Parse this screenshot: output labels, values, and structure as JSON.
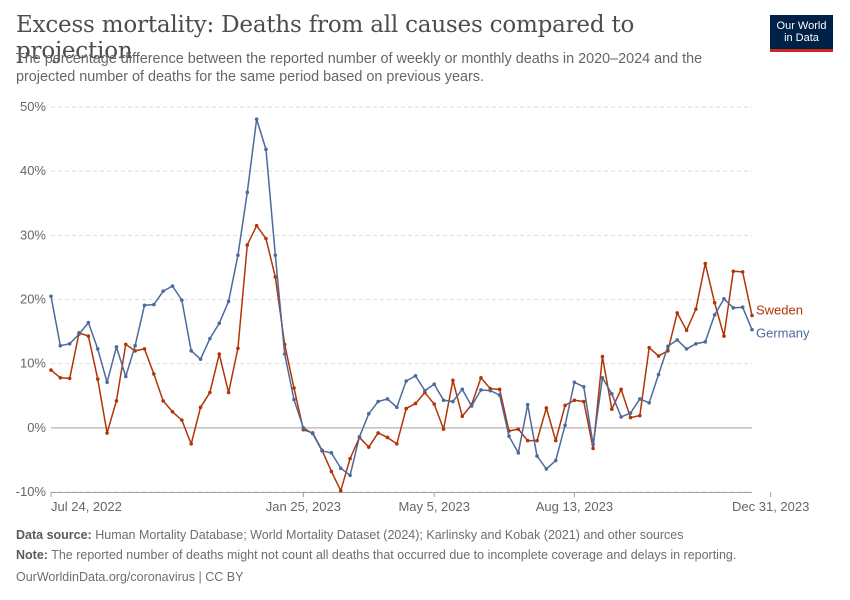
{
  "header": {
    "title": "Excess mortality: Deaths from all causes compared to projection",
    "subtitle": "The percentage difference between the reported number of weekly or monthly deaths in 2020–2024 and the projected number of deaths for the same period based on previous years."
  },
  "logo": {
    "line1": "Our World",
    "line2": "in Data"
  },
  "footer": {
    "source_label": "Data source:",
    "source_text": "Human Mortality Database; World Mortality Dataset (2024); Karlinsky and Kobak (2021) and other sources",
    "note_label": "Note:",
    "note_text": "The reported number of deaths might not count all deaths that occurred due to incomplete coverage and delays in reporting.",
    "url": "OurWorldinData.org/coronavirus | CC BY"
  },
  "chart_data": {
    "type": "line",
    "title": "Excess mortality: Deaths from all causes compared to projection",
    "xlabel": "",
    "ylabel": "",
    "ylim": [
      -10,
      50
    ],
    "y_ticks": [
      -10,
      0,
      10,
      20,
      30,
      40,
      50
    ],
    "y_tick_labels": [
      "-10%",
      "0%",
      "10%",
      "20%",
      "30%",
      "40%",
      "50%"
    ],
    "x_tick_labels": [
      {
        "label": "Jul 24, 2022",
        "index": 0
      },
      {
        "label": "Jan 25, 2023",
        "index": 27
      },
      {
        "label": "May 5, 2023",
        "index": 41
      },
      {
        "label": "Aug 13, 2023",
        "index": 56
      },
      {
        "label": "Dec 31, 2023",
        "index": 77
      }
    ],
    "grid": true,
    "legend": "inline-right",
    "series": [
      {
        "name": "Sweden",
        "color": "#b13507",
        "values": [
          9.0,
          7.8,
          7.7,
          14.8,
          14.3,
          7.6,
          -0.8,
          4.2,
          13.0,
          12.0,
          12.3,
          8.4,
          4.2,
          2.5,
          1.2,
          -2.5,
          3.2,
          5.5,
          11.5,
          5.5,
          12.4,
          28.5,
          31.5,
          29.5,
          23.5,
          13.0,
          6.2,
          -0.3,
          -0.8,
          -3.5,
          -6.8,
          -9.8,
          -4.8,
          -1.5,
          -3.0,
          -0.8,
          -1.5,
          -2.5,
          3.0,
          3.8,
          5.5,
          3.7,
          -0.2,
          7.4,
          1.8,
          3.6,
          7.8,
          6.1,
          6.0,
          -0.5,
          -0.2,
          -2.0,
          -2.0,
          3.1,
          -2.0,
          3.5,
          4.3,
          4.1,
          -3.2,
          11.1,
          2.9,
          6.0,
          1.6,
          1.9,
          12.5,
          11.2,
          12.0,
          17.9,
          15.2,
          18.5,
          25.6,
          19.5,
          14.3,
          24.4,
          24.3,
          17.5
        ]
      },
      {
        "name": "Germany",
        "color": "#4c6a9c",
        "values": [
          20.5,
          12.8,
          13.1,
          14.6,
          16.4,
          12.3,
          7.1,
          12.6,
          8.0,
          12.8,
          19.1,
          19.2,
          21.3,
          22.1,
          19.9,
          12.0,
          10.7,
          13.9,
          16.3,
          19.7,
          26.9,
          36.7,
          48.1,
          43.4,
          26.9,
          11.5,
          4.4,
          0.0,
          -0.9,
          -3.6,
          -3.9,
          -6.3,
          -7.4,
          -1.4,
          2.2,
          4.1,
          4.5,
          3.2,
          7.3,
          8.1,
          5.8,
          6.8,
          4.3,
          4.1,
          6.0,
          3.4,
          5.9,
          5.8,
          5.1,
          -1.3,
          -3.9,
          3.6,
          -4.4,
          -6.4,
          -5.1,
          0.4,
          7.1,
          6.4,
          -2.6,
          7.8,
          5.3,
          1.7,
          2.3,
          4.5,
          3.9,
          8.3,
          12.7,
          13.7,
          12.3,
          13.1,
          13.4,
          17.6,
          20.1,
          18.7,
          18.8,
          15.3
        ]
      }
    ]
  }
}
